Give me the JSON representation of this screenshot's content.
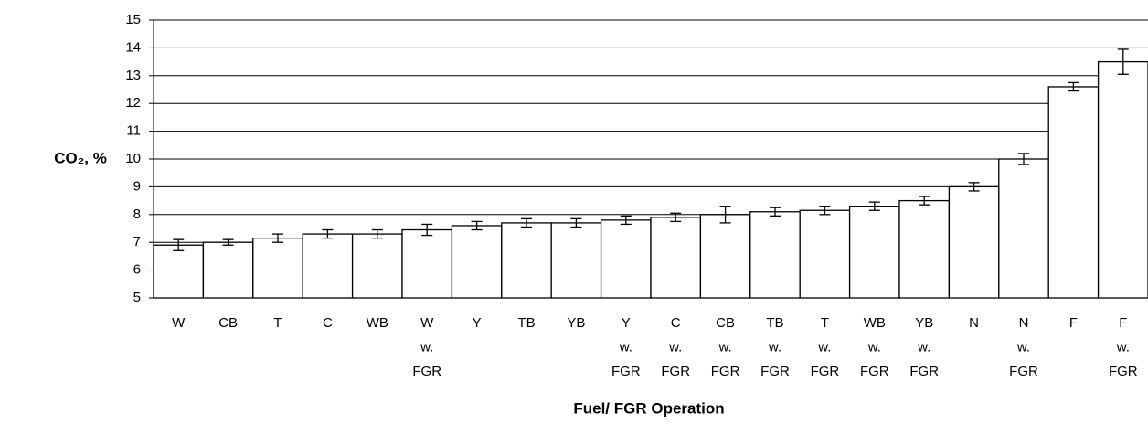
{
  "chart_data": {
    "type": "bar",
    "ylabel": "CO₂, %",
    "xlabel": "Fuel/ FGR Operation",
    "categories": [
      [
        "W"
      ],
      [
        "CB"
      ],
      [
        "T"
      ],
      [
        "C"
      ],
      [
        "WB"
      ],
      [
        "W",
        "w.",
        "FGR"
      ],
      [
        "Y"
      ],
      [
        "TB"
      ],
      [
        "YB"
      ],
      [
        "Y",
        "w.",
        "FGR"
      ],
      [
        "C",
        "w.",
        "FGR"
      ],
      [
        "CB",
        "w.",
        "FGR"
      ],
      [
        "TB",
        "w.",
        "FGR"
      ],
      [
        "T",
        "w.",
        "FGR"
      ],
      [
        "WB",
        "w.",
        "FGR"
      ],
      [
        "YB",
        "w.",
        "FGR"
      ],
      [
        "N"
      ],
      [
        "N",
        "w.",
        "FGR"
      ],
      [
        "F"
      ],
      [
        "F",
        "w.",
        "FGR"
      ]
    ],
    "values": [
      6.9,
      7.0,
      7.15,
      7.3,
      7.3,
      7.45,
      7.6,
      7.7,
      7.7,
      7.8,
      7.9,
      8.0,
      8.1,
      8.15,
      8.3,
      8.5,
      9.0,
      10.0,
      12.6,
      13.5
    ],
    "errors": [
      0.2,
      0.1,
      0.15,
      0.15,
      0.15,
      0.2,
      0.15,
      0.15,
      0.15,
      0.15,
      0.15,
      0.3,
      0.15,
      0.15,
      0.15,
      0.15,
      0.15,
      0.2,
      0.15,
      0.45
    ],
    "color": "#ffffff",
    "ylim": [
      5,
      15
    ],
    "yticks": [
      5,
      6,
      7,
      8,
      9,
      10,
      11,
      12,
      13,
      14,
      15
    ],
    "grid": true
  }
}
